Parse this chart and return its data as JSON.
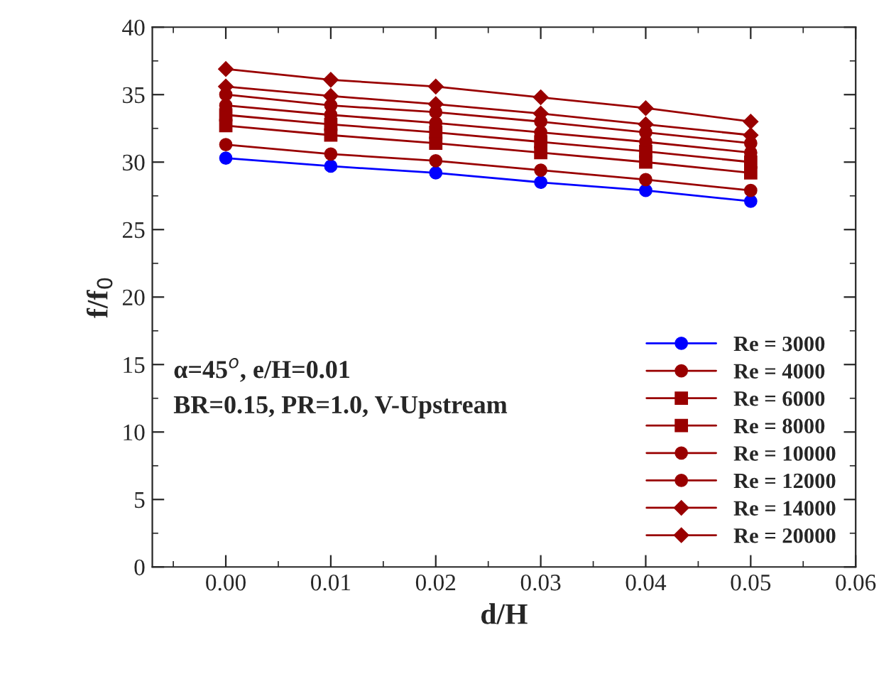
{
  "chart_data": {
    "type": "line",
    "xlabel": "d/H",
    "ylabel": "f/f$_{0}$",
    "x": [
      0.0,
      0.01,
      0.02,
      0.03,
      0.04,
      0.05
    ],
    "xlim": [
      -0.007,
      0.06
    ],
    "xticks": [
      {
        "value": 0.0,
        "label": "0.00"
      },
      {
        "value": 0.01,
        "label": "0.01"
      },
      {
        "value": 0.02,
        "label": "0.02"
      },
      {
        "value": 0.03,
        "label": "0.03"
      },
      {
        "value": 0.04,
        "label": "0.04"
      },
      {
        "value": 0.05,
        "label": "0.05"
      },
      {
        "value": 0.06,
        "label": "0.06"
      }
    ],
    "ylim": [
      0,
      40
    ],
    "yticks": [
      0,
      5,
      10,
      15,
      20,
      25,
      30,
      35,
      40
    ],
    "grid": false,
    "legend": "bottom right",
    "annotations": [
      "α=45$^{o}$, e/H=0.01",
      "BR=0.15, PR=1.0, V-Upstream"
    ],
    "series": [
      {
        "name": "Re = 3000",
        "color": "#0000ff",
        "marker": "circle",
        "values": [
          30.3,
          29.7,
          29.2,
          28.5,
          27.9,
          27.1
        ]
      },
      {
        "name": "Re = 4000",
        "color": "#990000",
        "marker": "circle",
        "values": [
          31.3,
          30.6,
          30.1,
          29.4,
          28.7,
          27.9
        ]
      },
      {
        "name": "Re = 6000",
        "color": "#990000",
        "marker": "square",
        "values": [
          32.7,
          32.0,
          31.4,
          30.7,
          30.0,
          29.2
        ]
      },
      {
        "name": "Re = 8000",
        "color": "#990000",
        "marker": "square",
        "values": [
          33.5,
          32.8,
          32.2,
          31.5,
          30.8,
          30.0
        ]
      },
      {
        "name": "Re = 10000",
        "color": "#990000",
        "marker": "circle",
        "values": [
          34.2,
          33.5,
          32.9,
          32.2,
          31.5,
          30.7
        ]
      },
      {
        "name": "Re = 12000",
        "color": "#990000",
        "marker": "circle",
        "values": [
          35.0,
          34.2,
          33.7,
          33.0,
          32.2,
          31.4
        ]
      },
      {
        "name": "Re = 14000",
        "color": "#990000",
        "marker": "diamond",
        "values": [
          35.6,
          34.9,
          34.3,
          33.6,
          32.8,
          32.0
        ]
      },
      {
        "name": "Re = 20000",
        "color": "#990000",
        "marker": "diamond",
        "values": [
          36.9,
          36.1,
          35.6,
          34.8,
          34.0,
          33.0
        ]
      }
    ]
  }
}
